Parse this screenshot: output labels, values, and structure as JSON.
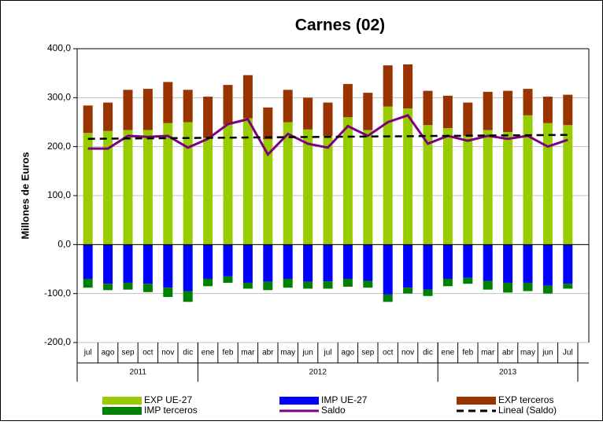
{
  "chart_data": {
    "type": "bar",
    "title": "Carnes (02)",
    "y_label": "Millones de Euros",
    "groups": [
      {
        "label": "2011",
        "categories": [
          "jul",
          "ago",
          "sep",
          "oct",
          "nov",
          "dic"
        ]
      },
      {
        "label": "2012",
        "categories": [
          "ene",
          "feb",
          "mar",
          "abr",
          "may",
          "jun",
          "jul",
          "ago",
          "sep",
          "oct",
          "nov",
          "dic"
        ]
      },
      {
        "label": "2013",
        "categories": [
          "ene",
          "feb",
          "mar",
          "abr",
          "may",
          "jun",
          "Jul"
        ]
      }
    ],
    "ylim": [
      -200,
      400
    ],
    "yticks": [
      {
        "value": -200,
        "label": "-200,0"
      },
      {
        "value": -100,
        "label": "-100,0"
      },
      {
        "value": 0,
        "label": "0,0"
      },
      {
        "value": 100,
        "label": "100,0"
      },
      {
        "value": 200,
        "label": "200,0"
      },
      {
        "value": 300,
        "label": "300,0"
      },
      {
        "value": 400,
        "label": "400,0"
      }
    ],
    "grid": true,
    "series": [
      {
        "name": "EXP UE-27",
        "type": "bar",
        "color": "#99cc00",
        "values": [
          228,
          232,
          234,
          234,
          248,
          250,
          218,
          245,
          258,
          215,
          250,
          235,
          222,
          260,
          234,
          282,
          278,
          244,
          238,
          222,
          234,
          230,
          264,
          248,
          244
        ]
      },
      {
        "name": "IMP UE-27",
        "type": "bar",
        "color": "#0000ff",
        "values": [
          -70,
          -80,
          -78,
          -80,
          -88,
          -95,
          -70,
          -65,
          -78,
          -76,
          -70,
          -76,
          -75,
          -70,
          -74,
          -102,
          -88,
          -92,
          -70,
          -68,
          -74,
          -78,
          -78,
          -84,
          -80
        ]
      },
      {
        "name": "EXP terceros",
        "type": "bar",
        "color": "#993300",
        "values": [
          56,
          58,
          82,
          84,
          84,
          66,
          84,
          81,
          88,
          65,
          66,
          65,
          68,
          68,
          76,
          84,
          90,
          70,
          66,
          68,
          78,
          84,
          54,
          54,
          62
        ]
      },
      {
        "name": "IMP terceros",
        "type": "bar",
        "color": "#008000",
        "values": [
          -18,
          -13,
          -14,
          -17,
          -19,
          -22,
          -15,
          -13,
          -12,
          -17,
          -18,
          -14,
          -15,
          -16,
          -14,
          -15,
          -12,
          -13,
          -15,
          -12,
          -18,
          -20,
          -17,
          -16,
          -10
        ]
      },
      {
        "name": "Saldo",
        "type": "line",
        "color": "#7f007f",
        "values": [
          196,
          196,
          222,
          220,
          222,
          198,
          216,
          246,
          256,
          184,
          226,
          206,
          198,
          242,
          222,
          250,
          264,
          206,
          222,
          212,
          222,
          216,
          222,
          200,
          214
        ]
      },
      {
        "name": "Lineal (Saldo)",
        "type": "line",
        "dash": true,
        "color": "#000000",
        "values": [
          216.0,
          216.3,
          216.7,
          217.0,
          217.3,
          217.7,
          218.0,
          218.3,
          218.7,
          219.0,
          219.3,
          219.7,
          220.0,
          220.3,
          220.7,
          221.0,
          221.3,
          221.7,
          222.0,
          222.3,
          222.7,
          223.0,
          223.3,
          223.7,
          224.0
        ]
      }
    ]
  }
}
